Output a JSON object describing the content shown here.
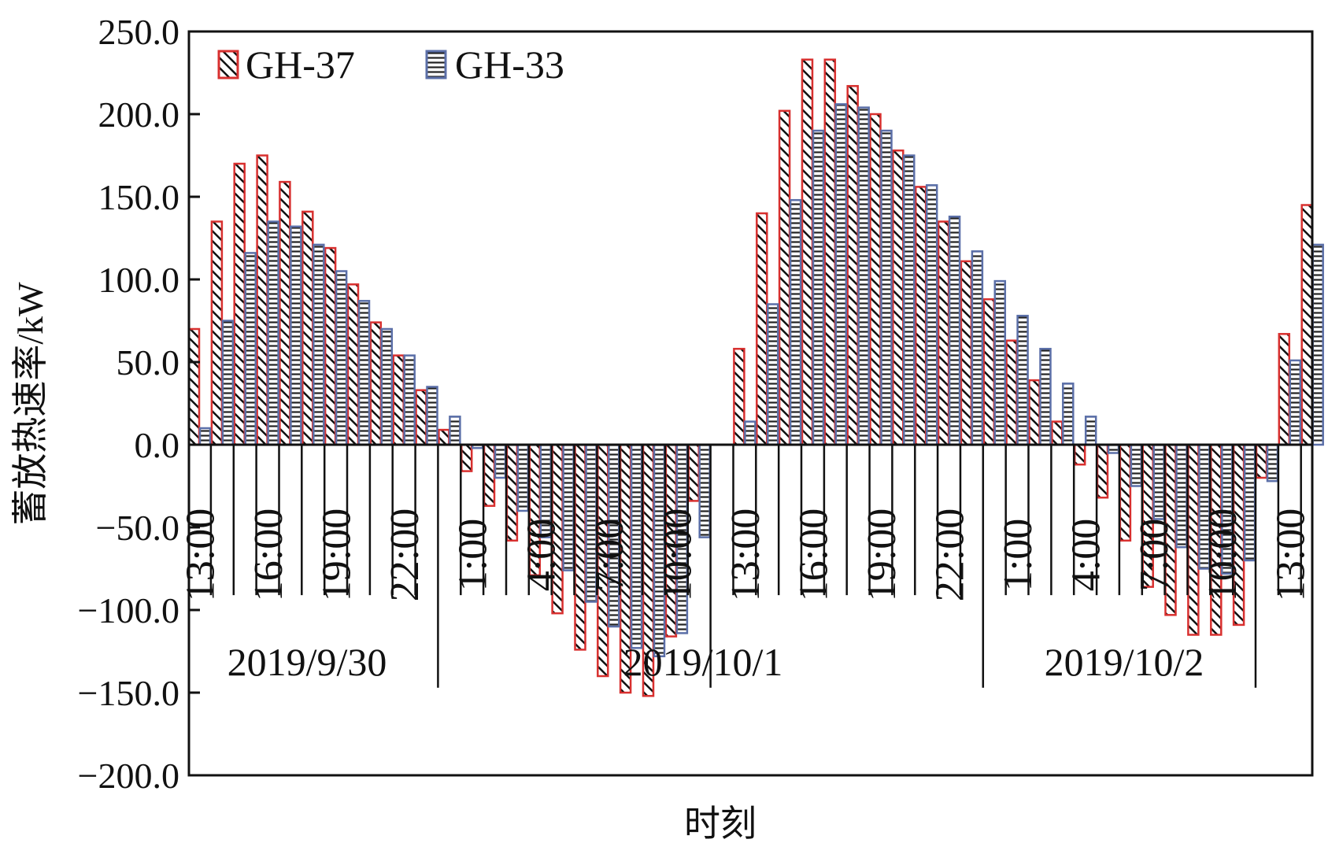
{
  "chart_data": {
    "type": "bar",
    "title": "",
    "xlabel": "时刻",
    "ylabel": "蓄放热速率/kW",
    "ylim": [
      -200,
      250
    ],
    "ytick_step": 50,
    "ytick_labels": [
      "250.0",
      "200.0",
      "150.0",
      "100.0",
      "50.0",
      "0.0",
      "−50.0",
      "−100.0",
      "−150.0",
      "−200.0"
    ],
    "grid": false,
    "legend_position": "top-left",
    "hours": [
      13,
      14,
      15,
      16,
      17,
      18,
      19,
      20,
      21,
      22,
      23,
      0,
      1,
      2,
      3,
      4,
      5,
      6,
      7,
      8,
      9,
      10,
      11,
      12,
      13,
      14,
      15,
      16,
      17,
      18,
      19,
      20,
      21,
      22,
      23,
      0,
      1,
      2,
      3,
      4,
      5,
      6,
      7,
      8,
      9,
      10,
      11,
      12,
      13,
      14
    ],
    "x_tick_labels": [
      "13:00",
      "16:00",
      "19:00",
      "22:00",
      "1:00",
      "4:00",
      "7:00",
      "10:00",
      "13:00",
      "16:00",
      "19:00",
      "22:00",
      "1:00",
      "4:00",
      "7:00",
      "10:00",
      "13:00"
    ],
    "x_tick_slots": [
      0,
      3,
      6,
      9,
      12,
      15,
      18,
      21,
      24,
      27,
      30,
      33,
      36,
      39,
      42,
      45,
      48
    ],
    "date_labels": [
      "2019/9/30",
      "2019/10/1",
      "2019/10/2"
    ],
    "series": [
      {
        "name": "GH-37",
        "color": "#d8302f",
        "pattern": "diagonal-hatch",
        "values": [
          70,
          135,
          170,
          175,
          159,
          141,
          119,
          97,
          74,
          54,
          33,
          9,
          -16,
          -37,
          -58,
          -79,
          -102,
          -124,
          -140,
          -150,
          -152,
          -116,
          -34,
          0,
          58,
          140,
          202,
          233,
          233,
          217,
          200,
          178,
          156,
          135,
          111,
          88,
          63,
          39,
          14,
          -12,
          -32,
          -58,
          -86,
          -103,
          -115,
          -115,
          -109,
          -20,
          67,
          145
        ]
      },
      {
        "name": "GH-33",
        "color": "#5b6fa8",
        "pattern": "horizontal-hatch",
        "values": [
          10,
          75,
          116,
          135,
          132,
          121,
          105,
          87,
          70,
          54,
          35,
          17,
          -2,
          -20,
          -40,
          -56,
          -76,
          -95,
          -110,
          -123,
          -128,
          -114,
          -56,
          0,
          14,
          85,
          148,
          190,
          206,
          204,
          190,
          175,
          157,
          138,
          117,
          99,
          78,
          58,
          37,
          17,
          -5,
          -25,
          -45,
          -62,
          -75,
          -78,
          -70,
          -22,
          51,
          121
        ]
      }
    ]
  }
}
